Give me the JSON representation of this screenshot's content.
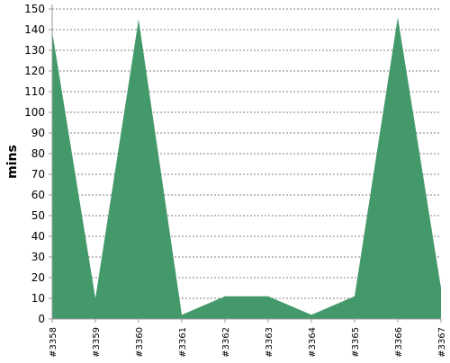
{
  "chart_data": {
    "type": "area",
    "categories": [
      "#3358",
      "#3359",
      "#3360",
      "#3361",
      "#3362",
      "#3363",
      "#3364",
      "#3365",
      "#3366",
      "#3367"
    ],
    "series": [
      {
        "values": [
          139,
          10,
          145,
          2,
          11,
          11,
          2,
          11,
          146,
          15
        ]
      }
    ],
    "title": "",
    "xlabel": "",
    "ylabel": "mins",
    "ylim": [
      0,
      150
    ],
    "yticks": [
      0,
      10,
      20,
      30,
      40,
      50,
      60,
      70,
      80,
      90,
      100,
      110,
      120,
      130,
      140,
      150
    ],
    "grid": true,
    "legend": "none",
    "colors": {
      "area": "#44996a",
      "grid": "#808080",
      "axis": "#999999"
    }
  }
}
